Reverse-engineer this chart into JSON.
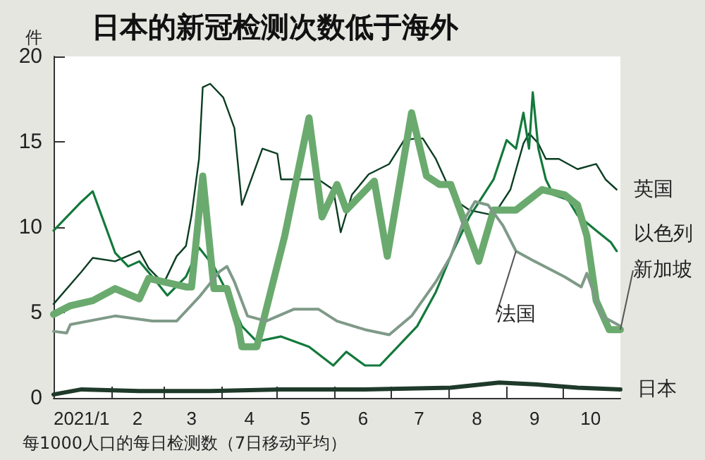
{
  "chart_data": {
    "type": "line",
    "title": "日本的新冠检测次数低于海外",
    "ylabel": "件",
    "annotations": [
      "每1000人口的每日检测数（7日移动平均）"
    ],
    "xlim": [
      "2021-01-01",
      "2021-11-01"
    ],
    "xticks": [
      {
        "value": "2021-01-01",
        "label": null
      },
      {
        "value": "2021-01-16",
        "label": "2021/1"
      },
      {
        "value": "2021-02-01",
        "label": null
      },
      {
        "value": "2021-02-15",
        "label": "2"
      },
      {
        "value": "2021-03-01",
        "label": null
      },
      {
        "value": "2021-03-16",
        "label": "3"
      },
      {
        "value": "2021-04-01",
        "label": null
      },
      {
        "value": "2021-04-16",
        "label": "4"
      },
      {
        "value": "2021-05-01",
        "label": null
      },
      {
        "value": "2021-05-16",
        "label": "5"
      },
      {
        "value": "2021-06-01",
        "label": null
      },
      {
        "value": "2021-06-16",
        "label": "6"
      },
      {
        "value": "2021-07-01",
        "label": null
      },
      {
        "value": "2021-07-16",
        "label": "7"
      },
      {
        "value": "2021-08-01",
        "label": null
      },
      {
        "value": "2021-08-16",
        "label": "8"
      },
      {
        "value": "2021-09-01",
        "label": null
      },
      {
        "value": "2021-09-16",
        "label": "9"
      },
      {
        "value": "2021-10-01",
        "label": null
      },
      {
        "value": "2021-10-16",
        "label": "10"
      }
    ],
    "ylim": [
      0,
      20
    ],
    "yticks": [
      0,
      5,
      10,
      15,
      20
    ],
    "grid": false,
    "legend": false,
    "marker": "none",
    "line_style": "solid",
    "series": [
      {
        "name": "英国",
        "color": "#0b3d22",
        "x": [
          "2021-01-01",
          "2021-01-16",
          "2021-01-22",
          "2021-02-03",
          "2021-02-16",
          "2021-02-21",
          "2021-03-01",
          "2021-03-08",
          "2021-03-13",
          "2021-03-16",
          "2021-03-20",
          "2021-03-22",
          "2021-03-26",
          "2021-04-02",
          "2021-04-08",
          "2021-04-12",
          "2021-04-23",
          "2021-05-01",
          "2021-05-03",
          "2021-05-12",
          "2021-05-23",
          "2021-05-31",
          "2021-06-04",
          "2021-06-10",
          "2021-06-19",
          "2021-06-30",
          "2021-07-08",
          "2021-07-15",
          "2021-07-18",
          "2021-07-25",
          "2021-08-04",
          "2021-08-12",
          "2021-08-25",
          "2021-09-03",
          "2021-09-10",
          "2021-09-13",
          "2021-09-18",
          "2021-09-22",
          "2021-09-29",
          "2021-10-09",
          "2021-10-19",
          "2021-10-24",
          "2021-10-30"
        ],
        "values": [
          5.5,
          7.4,
          8.2,
          8.0,
          8.6,
          7.6,
          6.7,
          8.3,
          8.9,
          10.7,
          14.0,
          18.2,
          18.4,
          17.6,
          15.8,
          11.3,
          14.6,
          14.3,
          12.8,
          12.8,
          12.8,
          12.2,
          9.7,
          11.9,
          13.1,
          13.7,
          15.1,
          15.2,
          15.2,
          14.0,
          11.6,
          11.0,
          10.7,
          12.2,
          14.9,
          15.5,
          14.9,
          14.0,
          14.0,
          13.4,
          13.7,
          12.8,
          12.2
        ]
      },
      {
        "name": "以色列",
        "color": "#13793b",
        "x": [
          "2021-01-01",
          "2021-01-16",
          "2021-01-22",
          "2021-02-03",
          "2021-02-10",
          "2021-02-16",
          "2021-02-23",
          "2021-03-03",
          "2021-03-13",
          "2021-03-20",
          "2021-03-28",
          "2021-04-04",
          "2021-04-12",
          "2021-04-20",
          "2021-05-03",
          "2021-05-18",
          "2021-05-31",
          "2021-06-07",
          "2021-06-17",
          "2021-06-25",
          "2021-07-02",
          "2021-07-15",
          "2021-07-25",
          "2021-08-02",
          "2021-08-12",
          "2021-08-25",
          "2021-09-01",
          "2021-09-06",
          "2021-09-10",
          "2021-09-13",
          "2021-09-15",
          "2021-09-18",
          "2021-09-22",
          "2021-09-26",
          "2021-10-04",
          "2021-10-09",
          "2021-10-19",
          "2021-10-27",
          "2021-10-30"
        ],
        "values": [
          9.8,
          11.5,
          12.1,
          8.5,
          7.7,
          8.0,
          7.1,
          6.0,
          7.1,
          8.8,
          7.7,
          6.2,
          4.2,
          3.3,
          3.6,
          3.0,
          1.9,
          2.7,
          1.9,
          1.9,
          2.7,
          4.2,
          6.2,
          8.3,
          10.6,
          12.8,
          15.1,
          14.6,
          16.7,
          14.6,
          17.9,
          14.6,
          12.8,
          11.9,
          11.6,
          10.7,
          9.8,
          9.1,
          8.6
        ]
      },
      {
        "name": "新加坡",
        "color": "#6aaa6e",
        "x": [
          "2021-01-01",
          "2021-01-10",
          "2021-01-22",
          "2021-02-03",
          "2021-02-16",
          "2021-02-21",
          "2021-03-13",
          "2021-03-16",
          "2021-03-22",
          "2021-03-28",
          "2021-04-04",
          "2021-04-10",
          "2021-04-12",
          "2021-04-20",
          "2021-05-05",
          "2021-05-18",
          "2021-05-25",
          "2021-06-02",
          "2021-06-07",
          "2021-06-22",
          "2021-06-29",
          "2021-07-12",
          "2021-07-20",
          "2021-07-27",
          "2021-08-02",
          "2021-08-17",
          "2021-08-25",
          "2021-09-06",
          "2021-09-20",
          "2021-10-02",
          "2021-10-09",
          "2021-10-14",
          "2021-10-19",
          "2021-10-26",
          "2021-11-01"
        ],
        "values": [
          4.9,
          5.4,
          5.7,
          6.4,
          5.8,
          7.0,
          6.5,
          6.5,
          13.0,
          6.4,
          6.4,
          4.2,
          3.0,
          3.0,
          9.5,
          16.4,
          10.6,
          12.5,
          11.0,
          12.7,
          8.3,
          16.7,
          13.0,
          12.5,
          12.5,
          8.0,
          11.0,
          11.0,
          12.2,
          11.9,
          11.3,
          9.5,
          5.7,
          4.0,
          4.0
        ]
      },
      {
        "name": "法国",
        "color": "#7f9a88",
        "x": [
          "2021-01-01",
          "2021-01-08",
          "2021-01-10",
          "2021-02-03",
          "2021-02-23",
          "2021-03-08",
          "2021-03-20",
          "2021-03-31",
          "2021-04-04",
          "2021-04-08",
          "2021-04-15",
          "2021-04-25",
          "2021-05-10",
          "2021-05-23",
          "2021-06-02",
          "2021-06-17",
          "2021-06-30",
          "2021-07-12",
          "2021-07-25",
          "2021-08-02",
          "2021-08-09",
          "2021-08-15",
          "2021-08-22",
          "2021-08-30",
          "2021-09-06",
          "2021-09-16",
          "2021-10-02",
          "2021-10-11",
          "2021-10-14",
          "2021-10-22",
          "2021-11-01"
        ],
        "values": [
          3.9,
          3.8,
          4.3,
          4.8,
          4.5,
          4.5,
          5.9,
          7.4,
          7.7,
          6.8,
          4.8,
          4.5,
          5.2,
          5.2,
          4.5,
          4.0,
          3.7,
          4.8,
          6.8,
          8.3,
          10.4,
          11.5,
          11.3,
          10.1,
          8.6,
          8.0,
          7.1,
          6.5,
          7.3,
          4.8,
          4.2
        ]
      },
      {
        "name": "日本",
        "color": "#1f3a2a",
        "x": [
          "2021-01-01",
          "2021-01-16",
          "2021-02-16",
          "2021-03-26",
          "2021-05-03",
          "2021-06-17",
          "2021-08-02",
          "2021-08-28",
          "2021-09-16",
          "2021-10-09",
          "2021-11-01"
        ],
        "values": [
          0.2,
          0.5,
          0.4,
          0.4,
          0.5,
          0.5,
          0.6,
          0.9,
          0.8,
          0.6,
          0.5
        ]
      }
    ]
  }
}
